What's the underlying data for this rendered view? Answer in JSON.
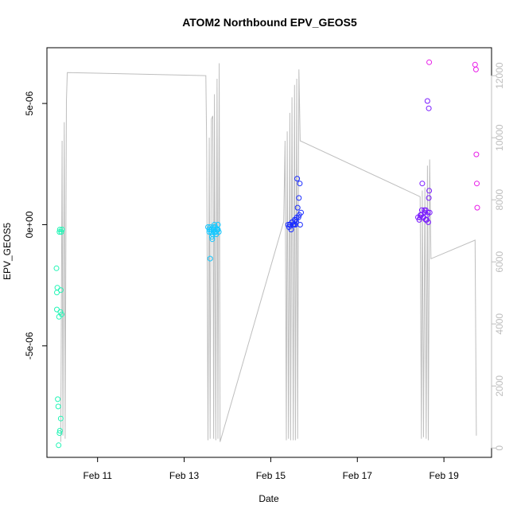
{
  "chart_data": {
    "type": "scatter",
    "title": "ATOM2 Northbound EPV_GEOS5",
    "xlabel": "Date",
    "ylabel": "EPV_GEOS5",
    "y2label": "",
    "x_ticks": [
      "Feb 11",
      "Feb 13",
      "Feb 15",
      "Feb 17",
      "Feb 19"
    ],
    "x_tick_days": [
      11,
      13,
      15,
      17,
      19
    ],
    "xlim_days": [
      9.83,
      20.1
    ],
    "y_ticks": [
      "-5e-06",
      "0e+00",
      "5e-06"
    ],
    "y_tick_values": [
      -5e-06,
      0,
      5e-06
    ],
    "ylim": [
      -9.6e-06,
      7.3e-06
    ],
    "y2_ticks": [
      "0",
      "2000",
      "4000",
      "6000",
      "8000",
      "10000",
      "12000"
    ],
    "y2_tick_values": [
      0,
      2000,
      4000,
      6000,
      8000,
      10000,
      12000
    ],
    "y2lim": [
      -300,
      12900
    ],
    "colors": {
      "series_start": "#20f5b5",
      "series_mid1": "#16c8ff",
      "series_mid2": "#1a2cff",
      "series_mid3": "#7a1aff",
      "series_end": "#e81ce8",
      "altitude_line": "#bebebe"
    },
    "altitude_series": {
      "name": "",
      "points": [
        [
          10.15,
          200
        ],
        [
          10.18,
          9900
        ],
        [
          10.2,
          400
        ],
        [
          10.23,
          10500
        ],
        [
          10.25,
          300
        ],
        [
          10.28,
          11200
        ],
        [
          10.3,
          12100
        ],
        [
          13.5,
          12000
        ],
        [
          13.52,
          9800
        ],
        [
          13.55,
          250
        ],
        [
          13.58,
          10000
        ],
        [
          13.6,
          300
        ],
        [
          13.63,
          10600
        ],
        [
          13.66,
          10700
        ],
        [
          13.68,
          300
        ],
        [
          13.7,
          11400
        ],
        [
          13.73,
          250
        ],
        [
          13.76,
          11900
        ],
        [
          13.78,
          300
        ],
        [
          13.81,
          12400
        ],
        [
          13.83,
          200
        ],
        [
          15.3,
          7300
        ],
        [
          15.33,
          9900
        ],
        [
          15.36,
          250
        ],
        [
          15.38,
          10200
        ],
        [
          15.41,
          300
        ],
        [
          15.44,
          10800
        ],
        [
          15.46,
          250
        ],
        [
          15.49,
          11300
        ],
        [
          15.52,
          250
        ],
        [
          15.55,
          11700
        ],
        [
          15.57,
          250
        ],
        [
          15.6,
          11900
        ],
        [
          15.62,
          300
        ],
        [
          15.65,
          12200
        ],
        [
          15.68,
          9900
        ],
        [
          18.45,
          8100
        ],
        [
          18.48,
          300
        ],
        [
          18.5,
          8300
        ],
        [
          18.53,
          350
        ],
        [
          18.56,
          8400
        ],
        [
          18.59,
          300
        ],
        [
          18.62,
          9100
        ],
        [
          18.64,
          250
        ],
        [
          18.67,
          9300
        ],
        [
          18.7,
          6100
        ],
        [
          19.72,
          6700
        ],
        [
          19.75,
          400
        ]
      ]
    },
    "epv_series": [
      {
        "name": "",
        "color": "#20f5b5",
        "x": [
          10.05,
          10.06,
          10.08,
          10.09,
          10.1,
          10.12,
          10.13,
          10.15,
          10.16,
          10.18,
          10.06,
          10.07,
          10.11,
          10.14,
          10.17,
          10.12,
          10.15,
          10.13
        ],
        "y": [
          -1.8e-06,
          -3.5e-06,
          -7.2e-06,
          -7.5e-06,
          -9.1e-06,
          -8.6e-06,
          -8.5e-06,
          -8e-06,
          -3e-07,
          -2e-07,
          -2.8e-06,
          -2.6e-06,
          -3.8e-06,
          -3.6e-06,
          -3.7e-06,
          -3e-07,
          -2.7e-06,
          -2e-07
        ]
      },
      {
        "name": "",
        "color": "#16c8ff",
        "x": [
          13.55,
          13.58,
          13.6,
          13.62,
          13.64,
          13.66,
          13.68,
          13.7,
          13.72,
          13.74,
          13.76,
          13.78,
          13.8,
          13.6,
          13.65,
          13.7,
          13.75,
          13.58,
          13.63,
          13.68,
          13.73,
          13.78
        ],
        "y": [
          -1e-07,
          -2e-07,
          -1.4e-06,
          -3e-07,
          -5e-07,
          -4e-07,
          -2e-07,
          -3e-07,
          -1e-07,
          -4e-07,
          -2e-07,
          0.0,
          -3e-07,
          -1e-07,
          -6e-07,
          0.0,
          -2e-07,
          -3e-07,
          -2e-07,
          -1e-07,
          -3e-07,
          -2e-07
        ]
      },
      {
        "name": "",
        "color": "#1a2cff",
        "x": [
          15.4,
          15.42,
          15.45,
          15.47,
          15.5,
          15.52,
          15.55,
          15.57,
          15.6,
          15.62,
          15.65,
          15.67,
          15.7,
          15.44,
          15.49,
          15.54,
          15.59,
          15.64,
          15.68,
          15.58,
          15.61,
          15.66
        ],
        "y": [
          0.0,
          -1e-07,
          0.0,
          -2e-07,
          1e-07,
          0.0,
          2e-07,
          0.0,
          3e-07,
          7e-07,
          1.1e-06,
          1.7e-06,
          5e-07,
          0.0,
          1e-07,
          0.0,
          1e-07,
          3e-07,
          0.0,
          2e-07,
          1.9e-06,
          4e-07
        ]
      },
      {
        "name": "",
        "color": "#7a1aff",
        "x": [
          18.4,
          18.43,
          18.46,
          18.49,
          18.52,
          18.55,
          18.58,
          18.61,
          18.64,
          18.67,
          18.45,
          18.5,
          18.55,
          18.6,
          18.65,
          18.48,
          18.53,
          18.58,
          18.63,
          18.66,
          18.62,
          18.65
        ],
        "y": [
          3e-07,
          2e-07,
          4e-07,
          6e-07,
          3e-07,
          5e-07,
          2e-07,
          4e-07,
          1e-07,
          5e-07,
          3e-07,
          1.7e-06,
          6e-07,
          2e-07,
          1.1e-06,
          4e-07,
          3e-07,
          6e-07,
          5e-07,
          1.4e-06,
          5.1e-06,
          4.8e-06
        ]
      },
      {
        "name": "",
        "color": "#e81ce8",
        "x": [
          18.66,
          19.72,
          19.74,
          19.75,
          19.76,
          19.77
        ],
        "y": [
          6.7e-06,
          6.6e-06,
          6.4e-06,
          2.9e-06,
          1.7e-06,
          7e-07
        ]
      }
    ],
    "grid": false,
    "legend": "none"
  }
}
